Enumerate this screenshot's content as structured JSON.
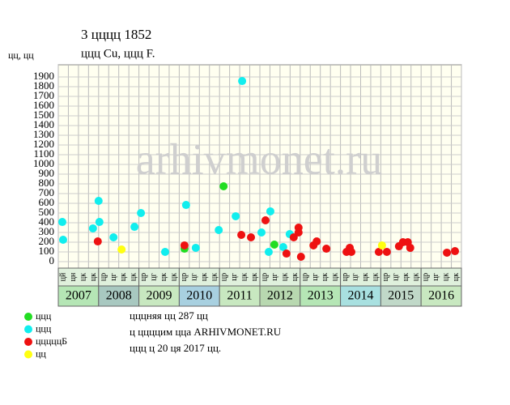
{
  "chart_data": {
    "type": "scatter",
    "title": "3 цццц 1852",
    "subtitle": "ццц Cu, ццц F.",
    "y_label": "цц, цц",
    "watermark": "arhivmonet.ru",
    "xlim": [
      2007,
      2017
    ],
    "ylim": [
      0,
      2000
    ],
    "yticks": [
      0,
      100,
      200,
      300,
      400,
      500,
      600,
      700,
      800,
      900,
      1000,
      1100,
      1200,
      1300,
      1400,
      1500,
      1600,
      1700,
      1800,
      1900
    ],
    "grid": true,
    "years": [
      {
        "label": "2007",
        "color": "#b5e6b5",
        "quarters": [
          "цй",
          "цн",
          "цк",
          "цк"
        ]
      },
      {
        "label": "2008",
        "color": "#a8c8c0",
        "quarters": [
          "цр",
          "цг",
          "цк",
          "цк"
        ]
      },
      {
        "label": "2009",
        "color": "#c8e8c0",
        "quarters": [
          "цр",
          "цг",
          "цк",
          "цк"
        ]
      },
      {
        "label": "2010",
        "color": "#a8d0e0",
        "quarters": [
          "цр",
          "цг",
          "цк",
          "цк"
        ]
      },
      {
        "label": "2011",
        "color": "#c8e8c0",
        "quarters": [
          "цр",
          "цг",
          "цк",
          "цк"
        ]
      },
      {
        "label": "2012",
        "color": "#b8d8b0",
        "quarters": [
          "цр",
          "цг",
          "цк",
          "цк"
        ]
      },
      {
        "label": "2013",
        "color": "#b5e6b5",
        "quarters": [
          "цр",
          "цг",
          "цк",
          "цк"
        ]
      },
      {
        "label": "2014",
        "color": "#a8e0e0",
        "quarters": [
          "цр",
          "цг",
          "цк",
          "цк"
        ]
      },
      {
        "label": "2015",
        "color": "#c0d8c8",
        "quarters": [
          "цр",
          "цг",
          "цк",
          "цк"
        ]
      },
      {
        "label": "2016",
        "color": "#c8e8c0",
        "quarters": [
          "цр",
          "цг",
          "цк",
          "цк"
        ]
      }
    ],
    "series": [
      {
        "name": "ццц",
        "color": "#22dd22",
        "x": [
          2011.1,
          2010.13,
          2012.36
        ],
        "values": [
          775,
          133,
          175
        ]
      },
      {
        "name": "ццц",
        "color": "#11eeee",
        "x": [
          2007.1,
          2007.12,
          2007.86,
          2008.0,
          2008.02,
          2008.37,
          2008.89,
          2009.05,
          2009.65,
          2010.17,
          2010.41,
          2010.98,
          2011.4,
          2011.56,
          2012.04,
          2012.22,
          2012.26,
          2012.58,
          2012.74
        ],
        "values": [
          408,
          225,
          342,
          625,
          408,
          250,
          358,
          500,
          100,
          583,
          142,
          325,
          467,
          1858,
          300,
          100,
          517,
          150,
          283
        ]
      },
      {
        "name": "цццццБ",
        "color": "#ee1111",
        "x": [
          2007.98,
          2010.13,
          2011.54,
          2011.78,
          2012.14,
          2012.66,
          2012.84,
          2012.96,
          2012.96,
          2013.02,
          2013.33,
          2013.41,
          2013.65,
          2014.15,
          2014.23,
          2014.27,
          2014.95,
          2015.15,
          2015.45,
          2015.55,
          2015.67,
          2015.73,
          2016.64,
          2016.84
        ],
        "values": [
          208,
          167,
          275,
          250,
          425,
          83,
          250,
          350,
          300,
          50,
          167,
          208,
          133,
          100,
          142,
          100,
          100,
          100,
          158,
          200,
          200,
          142,
          92,
          108
        ]
      },
      {
        "name": "цц",
        "color": "#ffff11",
        "x": [
          2008.57,
          2015.03
        ],
        "values": [
          125,
          167
        ]
      }
    ],
    "notes": [
      "цццняя цц 287 цц",
      "ц ццццим цца ARHIVMONET.RU",
      "ццц ц 20 ця 2017 цц."
    ]
  }
}
